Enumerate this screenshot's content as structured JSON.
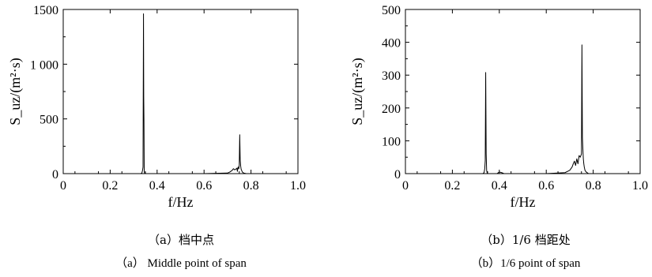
{
  "chart_data": [
    {
      "type": "line",
      "panel": "a",
      "xlabel": "f/Hz",
      "ylabel": "S_uz/(m²·s)",
      "xlim": [
        0,
        1.0
      ],
      "ylim": [
        0,
        1500
      ],
      "x_ticks": [
        "0",
        "0.2",
        "0.4",
        "0.6",
        "0.8",
        "1.0"
      ],
      "y_ticks": [
        "0",
        "500",
        "1 000",
        "1500"
      ],
      "grid": false,
      "series": [
        {
          "x": [
            0.0,
            0.33,
            0.335,
            0.338,
            0.34,
            0.342,
            0.343,
            0.344,
            0.345,
            0.346,
            0.348,
            0.35,
            0.352,
            0.36,
            0.4,
            0.6,
            0.7,
            0.71,
            0.72,
            0.725,
            0.73,
            0.735,
            0.74,
            0.742,
            0.745,
            0.748,
            0.75,
            0.752,
            0.754,
            0.756,
            0.758,
            0.76,
            0.762,
            0.765,
            0.77,
            0.78,
            1.0
          ],
          "y": [
            0,
            0,
            5,
            30,
            60,
            1460,
            700,
            480,
            40,
            10,
            0,
            0,
            0,
            0,
            0,
            0,
            5,
            15,
            30,
            45,
            35,
            40,
            50,
            20,
            60,
            45,
            80,
            355,
            120,
            70,
            40,
            30,
            20,
            10,
            5,
            0,
            0
          ]
        }
      ],
      "caption_cn": "（a）档中点",
      "caption_en": "（a） Middle point of span"
    },
    {
      "type": "line",
      "panel": "b",
      "xlabel": "f/Hz",
      "ylabel": "S_uz/(m²·s)",
      "xlim": [
        0,
        1.0
      ],
      "ylim": [
        0,
        500
      ],
      "x_ticks": [
        "0",
        "0.2",
        "0.4",
        "0.6",
        "0.8",
        "1.0"
      ],
      "y_ticks": [
        "0",
        "100",
        "200",
        "300",
        "400",
        "500"
      ],
      "grid": false,
      "series": [
        {
          "x": [
            0.0,
            0.33,
            0.335,
            0.338,
            0.34,
            0.342,
            0.344,
            0.346,
            0.348,
            0.35,
            0.36,
            0.39,
            0.4,
            0.41,
            0.42,
            0.6,
            0.68,
            0.7,
            0.71,
            0.715,
            0.72,
            0.725,
            0.73,
            0.735,
            0.74,
            0.745,
            0.75,
            0.752,
            0.754,
            0.756,
            0.758,
            0.76,
            0.762,
            0.765,
            0.77,
            0.78,
            0.8,
            1.0
          ],
          "y": [
            0,
            0,
            3,
            15,
            40,
            308,
            60,
            10,
            3,
            0,
            0,
            0,
            5,
            3,
            0,
            0,
            3,
            10,
            20,
            30,
            38,
            25,
            45,
            30,
            55,
            50,
            60,
            392,
            110,
            75,
            45,
            30,
            20,
            10,
            5,
            0,
            0,
            0
          ]
        }
      ],
      "caption_cn": "（b）1/6 档距处",
      "caption_en": "（b）1/6 point of span"
    }
  ]
}
